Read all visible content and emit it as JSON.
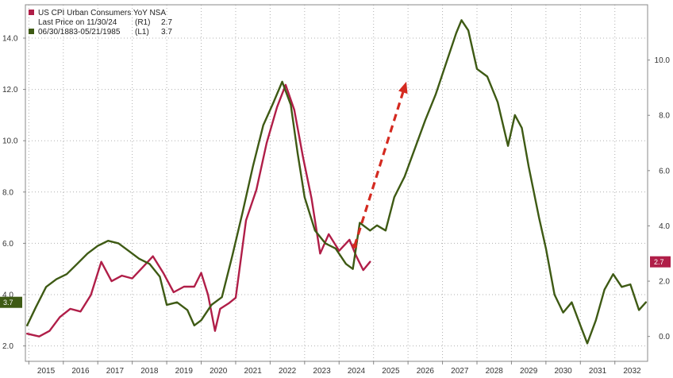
{
  "chart_data": {
    "type": "line",
    "title": "US CPI Urban Consumers YoY NSA",
    "legend": [
      {
        "label": "Last Price on 11/30/24",
        "axis": "(R1)",
        "value": "2.7",
        "color": "#b01e48"
      },
      {
        "label": "06/30/1883-05/21/1985",
        "axis": "(L1)",
        "value": "3.7",
        "color": "#3e5a14"
      }
    ],
    "x_ticks": [
      "2015",
      "2016",
      "2017",
      "2018",
      "2019",
      "2020",
      "2021",
      "2022",
      "2023",
      "2024",
      "2025",
      "2026",
      "2027",
      "2028",
      "2029",
      "2030",
      "2031",
      "2032"
    ],
    "xlim": [
      2014.9,
      2032.95
    ],
    "left_axis": {
      "ylim": [
        1.4,
        15.3
      ],
      "ticks": [
        "2.0",
        "4.0",
        "6.0",
        "8.0",
        "10.0",
        "12.0",
        "14.0"
      ]
    },
    "right_axis": {
      "ylim": [
        -0.9,
        12.0
      ],
      "ticks": [
        "0.0",
        "2.0",
        "4.0",
        "6.0",
        "8.0",
        "10.0"
      ]
    },
    "badges": {
      "left": "3.7",
      "right": "2.7"
    },
    "series": [
      {
        "name": "US CPI Urban Consumers YoY NSA",
        "axis": "right",
        "color": "#b01e48",
        "points": [
          [
            2014.95,
            0.1
          ],
          [
            2015.3,
            0.0
          ],
          [
            2015.6,
            0.2
          ],
          [
            2015.9,
            0.7
          ],
          [
            2016.2,
            1.0
          ],
          [
            2016.5,
            0.9
          ],
          [
            2016.8,
            1.5
          ],
          [
            2017.1,
            2.7
          ],
          [
            2017.4,
            2.0
          ],
          [
            2017.7,
            2.2
          ],
          [
            2018.0,
            2.1
          ],
          [
            2018.3,
            2.5
          ],
          [
            2018.6,
            2.9
          ],
          [
            2018.9,
            2.3
          ],
          [
            2019.2,
            1.6
          ],
          [
            2019.5,
            1.8
          ],
          [
            2019.8,
            1.8
          ],
          [
            2020.0,
            2.3
          ],
          [
            2020.2,
            1.5
          ],
          [
            2020.4,
            0.2
          ],
          [
            2020.55,
            1.0
          ],
          [
            2020.8,
            1.2
          ],
          [
            2021.0,
            1.4
          ],
          [
            2021.3,
            4.2
          ],
          [
            2021.6,
            5.3
          ],
          [
            2021.9,
            7.0
          ],
          [
            2022.2,
            8.3
          ],
          [
            2022.45,
            9.1
          ],
          [
            2022.7,
            8.2
          ],
          [
            2022.95,
            6.5
          ],
          [
            2023.2,
            5.0
          ],
          [
            2023.45,
            3.0
          ],
          [
            2023.7,
            3.7
          ],
          [
            2024.0,
            3.1
          ],
          [
            2024.3,
            3.5
          ],
          [
            2024.5,
            2.9
          ],
          [
            2024.7,
            2.4
          ],
          [
            2024.9,
            2.7
          ]
        ]
      },
      {
        "name": "06/30/1883-05/21/1985",
        "axis": "left",
        "color": "#3e5a14",
        "points": [
          [
            2014.95,
            2.8
          ],
          [
            2015.2,
            3.5
          ],
          [
            2015.5,
            4.3
          ],
          [
            2015.8,
            4.6
          ],
          [
            2016.1,
            4.8
          ],
          [
            2016.4,
            5.2
          ],
          [
            2016.7,
            5.6
          ],
          [
            2017.0,
            5.9
          ],
          [
            2017.3,
            6.1
          ],
          [
            2017.6,
            6.0
          ],
          [
            2017.9,
            5.7
          ],
          [
            2018.2,
            5.4
          ],
          [
            2018.5,
            5.2
          ],
          [
            2018.8,
            4.7
          ],
          [
            2019.0,
            3.6
          ],
          [
            2019.3,
            3.7
          ],
          [
            2019.6,
            3.4
          ],
          [
            2019.8,
            2.8
          ],
          [
            2020.0,
            3.0
          ],
          [
            2020.3,
            3.6
          ],
          [
            2020.6,
            3.9
          ],
          [
            2020.9,
            5.5
          ],
          [
            2021.2,
            7.2
          ],
          [
            2021.5,
            9.0
          ],
          [
            2021.8,
            10.6
          ],
          [
            2022.1,
            11.5
          ],
          [
            2022.35,
            12.3
          ],
          [
            2022.6,
            11.4
          ],
          [
            2022.8,
            9.5
          ],
          [
            2023.0,
            7.8
          ],
          [
            2023.3,
            6.5
          ],
          [
            2023.6,
            6.0
          ],
          [
            2023.9,
            5.8
          ],
          [
            2024.2,
            5.2
          ],
          [
            2024.4,
            5.0
          ],
          [
            2024.6,
            6.8
          ],
          [
            2024.9,
            6.5
          ],
          [
            2025.1,
            6.7
          ],
          [
            2025.35,
            6.5
          ],
          [
            2025.6,
            7.8
          ],
          [
            2025.9,
            8.6
          ],
          [
            2026.2,
            9.7
          ],
          [
            2026.5,
            10.8
          ],
          [
            2026.8,
            11.8
          ],
          [
            2027.1,
            13.0
          ],
          [
            2027.4,
            14.2
          ],
          [
            2027.55,
            14.7
          ],
          [
            2027.75,
            14.3
          ],
          [
            2028.0,
            12.8
          ],
          [
            2028.3,
            12.5
          ],
          [
            2028.6,
            11.5
          ],
          [
            2028.9,
            9.8
          ],
          [
            2029.1,
            11.0
          ],
          [
            2029.3,
            10.5
          ],
          [
            2029.5,
            9.0
          ],
          [
            2029.8,
            7.0
          ],
          [
            2030.0,
            5.8
          ],
          [
            2030.25,
            4.0
          ],
          [
            2030.5,
            3.3
          ],
          [
            2030.75,
            3.7
          ],
          [
            2031.0,
            2.8
          ],
          [
            2031.2,
            2.1
          ],
          [
            2031.45,
            3.0
          ],
          [
            2031.7,
            4.2
          ],
          [
            2031.95,
            4.8
          ],
          [
            2032.2,
            4.3
          ],
          [
            2032.45,
            4.4
          ],
          [
            2032.7,
            3.4
          ],
          [
            2032.9,
            3.7
          ]
        ]
      }
    ],
    "annotations": [
      {
        "type": "dashed-arrow",
        "color": "#d42a20",
        "from": [
          2024.45,
          5.9
        ],
        "to": [
          2025.95,
          12.3
        ],
        "axis": "left"
      }
    ],
    "grid": true
  }
}
